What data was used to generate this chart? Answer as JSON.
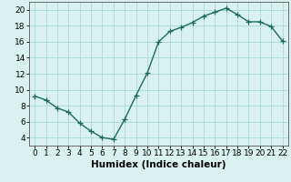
{
  "x": [
    0,
    1,
    2,
    3,
    4,
    5,
    6,
    7,
    8,
    9,
    10,
    11,
    12,
    13,
    14,
    15,
    16,
    17,
    18,
    19,
    20,
    21,
    22
  ],
  "y": [
    9.2,
    8.7,
    7.7,
    7.2,
    5.8,
    4.8,
    4.0,
    3.8,
    6.3,
    9.3,
    12.1,
    16.0,
    17.3,
    17.8,
    18.4,
    19.2,
    19.7,
    20.2,
    19.4,
    18.5,
    18.5,
    17.9,
    16.1
  ],
  "line_color": "#1a6b5e",
  "marker": "+",
  "marker_size": 4,
  "bg_color": "#d9f2f0",
  "grid_color": "#a8d8d4",
  "xlabel": "Humidex (Indice chaleur)",
  "xlim": [
    -0.5,
    22.5
  ],
  "ylim": [
    3.0,
    21.0
  ],
  "yticks": [
    4,
    6,
    8,
    10,
    12,
    14,
    16,
    18,
    20
  ],
  "xticks": [
    0,
    1,
    2,
    3,
    4,
    5,
    6,
    7,
    8,
    9,
    10,
    11,
    12,
    13,
    14,
    15,
    16,
    17,
    18,
    19,
    20,
    21,
    22
  ],
  "xlabel_fontsize": 7.5,
  "tick_fontsize": 6.5,
  "linewidth": 1.0,
  "marker_size_pts": 4
}
